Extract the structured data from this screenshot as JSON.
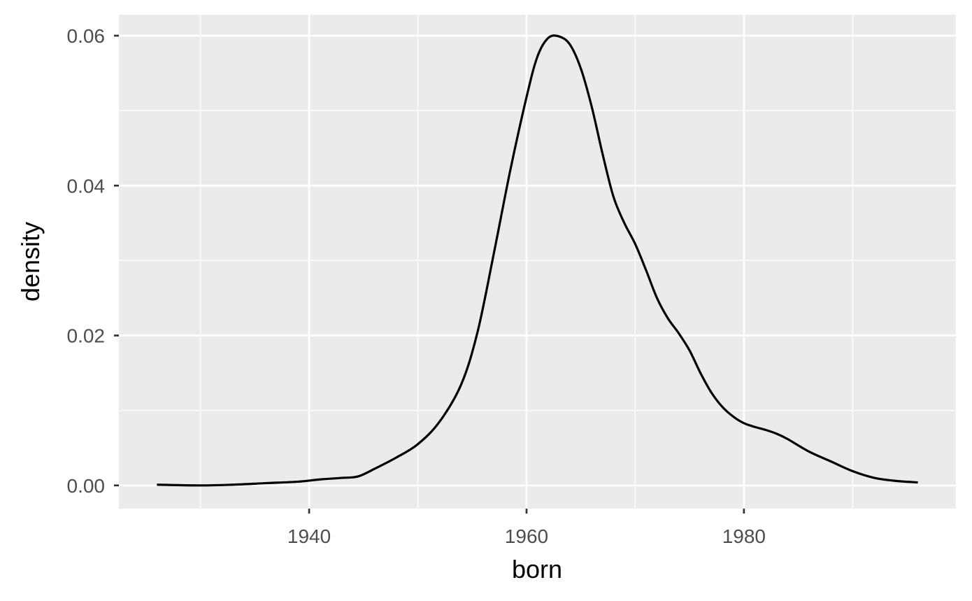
{
  "chart_data": {
    "type": "line",
    "title": "",
    "xlabel": "born",
    "ylabel": "density",
    "xlim": [
      1922.5,
      1999.5
    ],
    "ylim": [
      -0.0031,
      0.0628
    ],
    "x_ticks": [
      1940,
      1960,
      1980
    ],
    "x_tick_labels": [
      "1940",
      "1960",
      "1980"
    ],
    "x_minor_ticks": [
      1930,
      1950,
      1970,
      1990
    ],
    "y_ticks": [
      0.0,
      0.02,
      0.04,
      0.06
    ],
    "y_tick_labels": [
      "0.00",
      "0.02",
      "0.04",
      "0.06"
    ],
    "y_minor_ticks": [
      0.01,
      0.03,
      0.05
    ],
    "grid": true,
    "legend": "none",
    "colors": {
      "panel": "#ebebeb",
      "grid": "#ffffff",
      "line": "#000000",
      "tick_text": "#4d4d4d",
      "title_text": "#000000"
    },
    "series": [
      {
        "x": [
          1926,
          1930,
          1933,
          1936,
          1939,
          1941,
          1943,
          1944.5,
          1946,
          1948,
          1950,
          1952,
          1954,
          1955.5,
          1957,
          1958.5,
          1960,
          1961,
          1962,
          1963,
          1964,
          1965,
          1966,
          1967,
          1968,
          1969,
          1970,
          1971,
          1972,
          1973,
          1974,
          1975,
          1976,
          1977,
          1978,
          1979,
          1980,
          1981,
          1982,
          1983,
          1984,
          1986,
          1988,
          1990,
          1992,
          1994,
          1996
        ],
        "y": [
          0.0001,
          0.0,
          0.0001,
          0.0003,
          0.0005,
          0.0008,
          0.001,
          0.0012,
          0.0022,
          0.0037,
          0.0055,
          0.0085,
          0.0135,
          0.0205,
          0.031,
          0.042,
          0.0518,
          0.0572,
          0.0597,
          0.0599,
          0.0588,
          0.0556,
          0.0505,
          0.0442,
          0.0385,
          0.035,
          0.0322,
          0.0287,
          0.025,
          0.0223,
          0.0203,
          0.018,
          0.015,
          0.0124,
          0.0105,
          0.0092,
          0.0083,
          0.0078,
          0.0074,
          0.0069,
          0.0062,
          0.0045,
          0.0032,
          0.0019,
          0.001,
          0.0006,
          0.0004
        ]
      }
    ]
  }
}
